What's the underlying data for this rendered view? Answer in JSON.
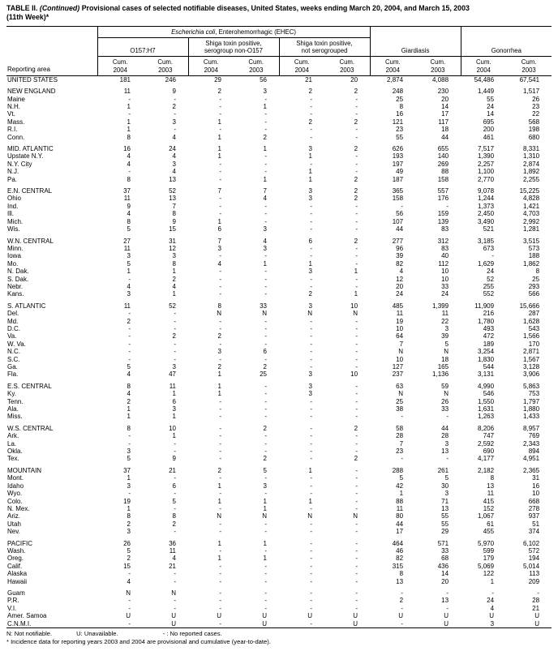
{
  "title": {
    "label": "TABLE II. ",
    "continued": "(Continued)",
    "rest": " Provisional cases of selected notifiable diseases, United States, weeks ending March 20, 2004, and March 15, 2003",
    "line2": "(11th Week)*"
  },
  "table": {
    "header": {
      "reporting_area": "Reporting area",
      "ehec_italic": "Escherichia coli",
      "ehec_rest": ", Enterohemorrhagic (EHEC)",
      "o157": "O157:H7",
      "shiga_non_o157": "Shiga toxin positive,\nserogroup non-O157",
      "shiga_not_serogrouped": "Shiga toxin positive,\nnot serogrouped",
      "giardiasis": "Giardiasis",
      "gonorrhea": "Gonorrhea"
    },
    "cum_labels": [
      "Cum.\n2004",
      "Cum.\n2003",
      "Cum.\n2004",
      "Cum.\n2003",
      "Cum.\n2004",
      "Cum.\n2003",
      "Cum.\n2004",
      "Cum.\n2003",
      "Cum.\n2004",
      "Cum.\n2003"
    ],
    "sections": [
      [
        {
          "area": "UNITED STATES",
          "region": true,
          "values": [
            "181",
            "246",
            "29",
            "56",
            "21",
            "20",
            "2,874",
            "4,088",
            "54,486",
            "67,541"
          ]
        }
      ],
      [
        {
          "area": "NEW ENGLAND",
          "region": true,
          "values": [
            "11",
            "9",
            "2",
            "3",
            "2",
            "2",
            "248",
            "230",
            "1,449",
            "1,517"
          ]
        },
        {
          "area": "Maine",
          "values": [
            "-",
            "-",
            "-",
            "-",
            "-",
            "-",
            "25",
            "20",
            "55",
            "26"
          ]
        },
        {
          "area": "N.H.",
          "values": [
            "1",
            "2",
            "-",
            "1",
            "-",
            "-",
            "8",
            "14",
            "24",
            "23"
          ]
        },
        {
          "area": "Vt.",
          "values": [
            "-",
            "-",
            "-",
            "-",
            "-",
            "-",
            "16",
            "17",
            "14",
            "22"
          ]
        },
        {
          "area": "Mass.",
          "values": [
            "1",
            "3",
            "1",
            "-",
            "2",
            "2",
            "121",
            "117",
            "695",
            "568"
          ]
        },
        {
          "area": "R.I.",
          "values": [
            "1",
            "-",
            "-",
            "-",
            "-",
            "-",
            "23",
            "18",
            "200",
            "198"
          ]
        },
        {
          "area": "Conn.",
          "values": [
            "8",
            "4",
            "1",
            "2",
            "-",
            "-",
            "55",
            "44",
            "461",
            "680"
          ]
        }
      ],
      [
        {
          "area": "MID. ATLANTIC",
          "region": true,
          "values": [
            "16",
            "24",
            "1",
            "1",
            "3",
            "2",
            "626",
            "655",
            "7,517",
            "8,331"
          ]
        },
        {
          "area": "Upstate N.Y.",
          "values": [
            "4",
            "4",
            "1",
            "-",
            "1",
            "-",
            "193",
            "140",
            "1,390",
            "1,310"
          ]
        },
        {
          "area": "N.Y. City",
          "values": [
            "4",
            "3",
            "-",
            "-",
            "-",
            "-",
            "197",
            "269",
            "2,257",
            "2,874"
          ]
        },
        {
          "area": "N.J.",
          "values": [
            "-",
            "4",
            "-",
            "-",
            "1",
            "-",
            "49",
            "88",
            "1,100",
            "1,892"
          ]
        },
        {
          "area": "Pa.",
          "values": [
            "8",
            "13",
            "-",
            "1",
            "1",
            "2",
            "187",
            "158",
            "2,770",
            "2,255"
          ]
        }
      ],
      [
        {
          "area": "E.N. CENTRAL",
          "region": true,
          "values": [
            "37",
            "52",
            "7",
            "7",
            "3",
            "2",
            "365",
            "557",
            "9,078",
            "15,225"
          ]
        },
        {
          "area": "Ohio",
          "values": [
            "11",
            "13",
            "-",
            "4",
            "3",
            "2",
            "158",
            "176",
            "1,244",
            "4,828"
          ]
        },
        {
          "area": "Ind.",
          "values": [
            "9",
            "7",
            "-",
            "-",
            "-",
            "-",
            "-",
            "-",
            "1,373",
            "1,421"
          ]
        },
        {
          "area": "Ill.",
          "values": [
            "4",
            "8",
            "-",
            "-",
            "-",
            "-",
            "56",
            "159",
            "2,450",
            "4,703"
          ]
        },
        {
          "area": "Mich.",
          "values": [
            "8",
            "9",
            "1",
            "-",
            "-",
            "-",
            "107",
            "139",
            "3,490",
            "2,992"
          ]
        },
        {
          "area": "Wis.",
          "values": [
            "5",
            "15",
            "6",
            "3",
            "-",
            "-",
            "44",
            "83",
            "521",
            "1,281"
          ]
        }
      ],
      [
        {
          "area": "W.N. CENTRAL",
          "region": true,
          "values": [
            "27",
            "31",
            "7",
            "4",
            "6",
            "2",
            "277",
            "312",
            "3,185",
            "3,515"
          ]
        },
        {
          "area": "Minn.",
          "values": [
            "11",
            "12",
            "3",
            "3",
            "-",
            "-",
            "96",
            "83",
            "673",
            "573"
          ]
        },
        {
          "area": "Iowa",
          "values": [
            "3",
            "3",
            "-",
            "-",
            "-",
            "-",
            "39",
            "40",
            "-",
            "188"
          ]
        },
        {
          "area": "Mo.",
          "values": [
            "5",
            "8",
            "4",
            "1",
            "1",
            "-",
            "82",
            "112",
            "1,629",
            "1,862"
          ]
        },
        {
          "area": "N. Dak.",
          "values": [
            "1",
            "1",
            "-",
            "-",
            "3",
            "1",
            "4",
            "10",
            "24",
            "8"
          ]
        },
        {
          "area": "S. Dak.",
          "values": [
            "-",
            "2",
            "-",
            "-",
            "-",
            "-",
            "12",
            "10",
            "52",
            "25"
          ]
        },
        {
          "area": "Nebr.",
          "values": [
            "4",
            "4",
            "-",
            "-",
            "-",
            "-",
            "20",
            "33",
            "255",
            "293"
          ]
        },
        {
          "area": "Kans.",
          "values": [
            "3",
            "1",
            "-",
            "-",
            "2",
            "1",
            "24",
            "24",
            "552",
            "566"
          ]
        }
      ],
      [
        {
          "area": "S. ATLANTIC",
          "region": true,
          "values": [
            "11",
            "52",
            "8",
            "33",
            "3",
            "10",
            "485",
            "1,399",
            "11,909",
            "15,666"
          ]
        },
        {
          "area": "Del.",
          "values": [
            "-",
            "-",
            "N",
            "N",
            "N",
            "N",
            "11",
            "11",
            "216",
            "287"
          ]
        },
        {
          "area": "Md.",
          "values": [
            "2",
            "-",
            "-",
            "-",
            "-",
            "-",
            "19",
            "22",
            "1,780",
            "1,628"
          ]
        },
        {
          "area": "D.C.",
          "values": [
            "-",
            "-",
            "-",
            "-",
            "-",
            "-",
            "10",
            "3",
            "493",
            "543"
          ]
        },
        {
          "area": "Va.",
          "values": [
            "-",
            "2",
            "2",
            "-",
            "-",
            "-",
            "64",
            "39",
            "472",
            "1,566"
          ]
        },
        {
          "area": "W. Va.",
          "values": [
            "-",
            "-",
            "-",
            "-",
            "-",
            "-",
            "7",
            "5",
            "189",
            "170"
          ]
        },
        {
          "area": "N.C.",
          "values": [
            "-",
            "-",
            "3",
            "6",
            "-",
            "-",
            "N",
            "N",
            "3,254",
            "2,871"
          ]
        },
        {
          "area": "S.C.",
          "values": [
            "-",
            "-",
            "-",
            "-",
            "-",
            "-",
            "10",
            "18",
            "1,830",
            "1,567"
          ]
        },
        {
          "area": "Ga.",
          "values": [
            "5",
            "3",
            "2",
            "2",
            "-",
            "-",
            "127",
            "165",
            "544",
            "3,128"
          ]
        },
        {
          "area": "Fla.",
          "values": [
            "4",
            "47",
            "1",
            "25",
            "3",
            "10",
            "237",
            "1,136",
            "3,131",
            "3,906"
          ]
        }
      ],
      [
        {
          "area": "E.S. CENTRAL",
          "region": true,
          "values": [
            "8",
            "11",
            "1",
            "-",
            "3",
            "-",
            "63",
            "59",
            "4,990",
            "5,863"
          ]
        },
        {
          "area": "Ky.",
          "values": [
            "4",
            "1",
            "1",
            "-",
            "3",
            "-",
            "N",
            "N",
            "546",
            "753"
          ]
        },
        {
          "area": "Tenn.",
          "values": [
            "2",
            "6",
            "-",
            "-",
            "-",
            "-",
            "25",
            "26",
            "1,550",
            "1,797"
          ]
        },
        {
          "area": "Ala.",
          "values": [
            "1",
            "3",
            "-",
            "-",
            "-",
            "-",
            "38",
            "33",
            "1,631",
            "1,880"
          ]
        },
        {
          "area": "Miss.",
          "values": [
            "1",
            "1",
            "-",
            "-",
            "-",
            "-",
            "-",
            "-",
            "1,263",
            "1,433"
          ]
        }
      ],
      [
        {
          "area": "W.S. CENTRAL",
          "region": true,
          "values": [
            "8",
            "10",
            "-",
            "2",
            "-",
            "2",
            "58",
            "44",
            "8,206",
            "8,957"
          ]
        },
        {
          "area": "Ark.",
          "values": [
            "-",
            "1",
            "-",
            "-",
            "-",
            "-",
            "28",
            "28",
            "747",
            "769"
          ]
        },
        {
          "area": "La.",
          "values": [
            "-",
            "-",
            "-",
            "-",
            "-",
            "-",
            "7",
            "3",
            "2,592",
            "2,343"
          ]
        },
        {
          "area": "Okla.",
          "values": [
            "3",
            "-",
            "-",
            "-",
            "-",
            "-",
            "23",
            "13",
            "690",
            "894"
          ]
        },
        {
          "area": "Tex.",
          "values": [
            "5",
            "9",
            "-",
            "2",
            "-",
            "2",
            "-",
            "-",
            "4,177",
            "4,951"
          ]
        }
      ],
      [
        {
          "area": "MOUNTAIN",
          "region": true,
          "values": [
            "37",
            "21",
            "2",
            "5",
            "1",
            "-",
            "288",
            "261",
            "2,182",
            "2,365"
          ]
        },
        {
          "area": "Mont.",
          "values": [
            "1",
            "-",
            "-",
            "-",
            "-",
            "-",
            "5",
            "5",
            "8",
            "31"
          ]
        },
        {
          "area": "Idaho",
          "values": [
            "3",
            "6",
            "1",
            "3",
            "-",
            "-",
            "42",
            "30",
            "13",
            "16"
          ]
        },
        {
          "area": "Wyo.",
          "values": [
            "-",
            "-",
            "-",
            "-",
            "-",
            "-",
            "1",
            "3",
            "11",
            "10"
          ]
        },
        {
          "area": "Colo.",
          "values": [
            "19",
            "5",
            "1",
            "1",
            "1",
            "-",
            "88",
            "71",
            "415",
            "668"
          ]
        },
        {
          "area": "N. Mex.",
          "values": [
            "1",
            "-",
            "-",
            "1",
            "-",
            "-",
            "11",
            "13",
            "152",
            "278"
          ]
        },
        {
          "area": "Ariz.",
          "values": [
            "8",
            "8",
            "N",
            "N",
            "N",
            "N",
            "80",
            "55",
            "1,067",
            "937"
          ]
        },
        {
          "area": "Utah",
          "values": [
            "2",
            "2",
            "-",
            "-",
            "-",
            "-",
            "44",
            "55",
            "61",
            "51"
          ]
        },
        {
          "area": "Nev.",
          "values": [
            "3",
            "-",
            "-",
            "-",
            "-",
            "-",
            "17",
            "29",
            "455",
            "374"
          ]
        }
      ],
      [
        {
          "area": "PACIFIC",
          "region": true,
          "values": [
            "26",
            "36",
            "1",
            "1",
            "-",
            "-",
            "464",
            "571",
            "5,970",
            "6,102"
          ]
        },
        {
          "area": "Wash.",
          "values": [
            "5",
            "11",
            "-",
            "-",
            "-",
            "-",
            "46",
            "33",
            "599",
            "572"
          ]
        },
        {
          "area": "Oreg.",
          "values": [
            "2",
            "4",
            "1",
            "1",
            "-",
            "-",
            "82",
            "68",
            "179",
            "194"
          ]
        },
        {
          "area": "Calif.",
          "values": [
            "15",
            "21",
            "-",
            "-",
            "-",
            "-",
            "315",
            "436",
            "5,069",
            "5,014"
          ]
        },
        {
          "area": "Alaska",
          "values": [
            "-",
            "-",
            "-",
            "-",
            "-",
            "-",
            "8",
            "14",
            "122",
            "113"
          ]
        },
        {
          "area": "Hawaii",
          "values": [
            "4",
            "-",
            "-",
            "-",
            "-",
            "-",
            "13",
            "20",
            "1",
            "209"
          ]
        }
      ],
      [
        {
          "area": "Guam",
          "values": [
            "N",
            "N",
            "-",
            "-",
            "-",
            "-",
            "-",
            "-",
            "-",
            "-"
          ]
        },
        {
          "area": "P.R.",
          "values": [
            "-",
            "-",
            "-",
            "-",
            "-",
            "-",
            "2",
            "13",
            "24",
            "28"
          ]
        },
        {
          "area": "V.I.",
          "values": [
            "-",
            "-",
            "-",
            "-",
            "-",
            "-",
            "-",
            "-",
            "4",
            "21"
          ]
        },
        {
          "area": "Amer. Samoa",
          "values": [
            "U",
            "U",
            "U",
            "U",
            "U",
            "U",
            "U",
            "U",
            "U",
            "U"
          ]
        },
        {
          "area": "C.N.M.I.",
          "values": [
            "-",
            "U",
            "-",
            "U",
            "-",
            "U",
            "-",
            "U",
            "3",
            "U"
          ]
        }
      ]
    ]
  },
  "footnotes": {
    "n": "N: Not notifiable.",
    "u": "U: Unavailable.",
    "dash": "- : No reported cases.",
    "asterisk": "* Incidence data for reporting years 2003 and 2004 are provisional and cumulative (year-to-date)."
  }
}
